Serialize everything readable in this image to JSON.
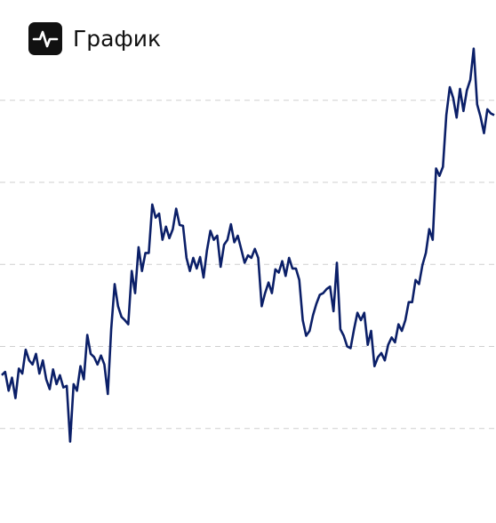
{
  "chart_data": {
    "type": "line",
    "title": "График",
    "series": [
      {
        "color": "#0b1f68",
        "values": [
          0.65,
          0.69,
          0.46,
          0.62,
          0.37,
          0.73,
          0.67,
          0.96,
          0.83,
          0.78,
          0.91,
          0.67,
          0.83,
          0.6,
          0.48,
          0.72,
          0.54,
          0.65,
          0.5,
          0.52,
          -0.16,
          0.54,
          0.46,
          0.76,
          0.6,
          1.14,
          0.91,
          0.87,
          0.78,
          0.89,
          0.78,
          0.42,
          1.21,
          1.76,
          1.49,
          1.36,
          1.32,
          1.27,
          1.92,
          1.65,
          2.21,
          1.92,
          2.14,
          2.14,
          2.73,
          2.57,
          2.62,
          2.3,
          2.46,
          2.32,
          2.43,
          2.68,
          2.48,
          2.47,
          2.08,
          1.92,
          2.08,
          1.95,
          2.09,
          1.84,
          2.17,
          2.41,
          2.3,
          2.35,
          1.97,
          2.24,
          2.3,
          2.49,
          2.27,
          2.35,
          2.19,
          2.02,
          2.11,
          2.08,
          2.19,
          2.08,
          1.49,
          1.65,
          1.78,
          1.65,
          1.94,
          1.9,
          2.04,
          1.86,
          2.08,
          1.95,
          1.95,
          1.81,
          1.32,
          1.13,
          1.19,
          1.38,
          1.52,
          1.63,
          1.65,
          1.7,
          1.73,
          1.43,
          2.02,
          1.21,
          1.13,
          1.0,
          0.98,
          1.21,
          1.41,
          1.32,
          1.41,
          1.02,
          1.19,
          0.76,
          0.87,
          0.92,
          0.83,
          1.02,
          1.11,
          1.05,
          1.27,
          1.19,
          1.32,
          1.54,
          1.54,
          1.81,
          1.76,
          1.99,
          2.14,
          2.43,
          2.3,
          3.17,
          3.08,
          3.19,
          3.82,
          4.16,
          4.03,
          3.79,
          4.14,
          3.87,
          4.12,
          4.25,
          4.63,
          3.95,
          3.8,
          3.6,
          3.89,
          3.84,
          3.82
        ]
      }
    ],
    "ylim": [
      -1,
      4.8
    ],
    "yticks": [
      0,
      1,
      2,
      3,
      4
    ],
    "grid": true
  }
}
